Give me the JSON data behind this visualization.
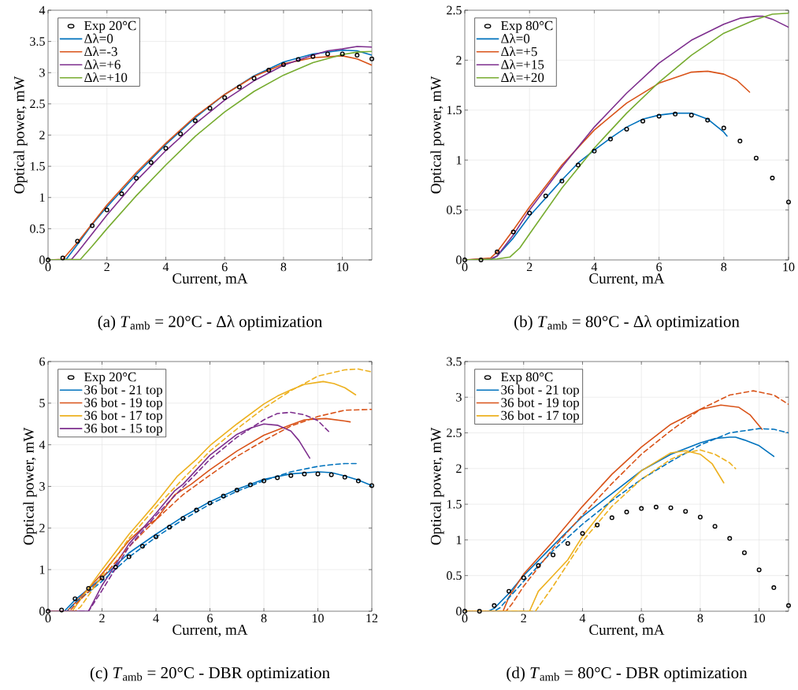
{
  "chart_data": [
    {
      "type": "line",
      "xlabel": "Current, mA",
      "ylabel": "Optical power, mW",
      "annotations": [
        "(a) *T*$_{amb}$ = 20°C - Δλ optimization"
      ],
      "xlim": [
        0,
        11
      ],
      "ylim": [
        0,
        4
      ],
      "xticks": [
        0,
        2,
        4,
        6,
        8,
        10
      ],
      "yticks": [
        0,
        0.5,
        1,
        1.5,
        2,
        2.5,
        3,
        3.5,
        4
      ],
      "grid": true,
      "legend": "top left",
      "series": [
        {
          "name": "Exp 20°C",
          "type": "scatter",
          "marker": "circle",
          "color": "#000000",
          "x": [
            0,
            0.5,
            1,
            1.5,
            2,
            2.5,
            3,
            3.5,
            4,
            4.5,
            5,
            5.5,
            6,
            6.5,
            7,
            7.5,
            8,
            8.5,
            9,
            9.5,
            10,
            10.5,
            11
          ],
          "values": [
            0,
            0.03,
            0.3,
            0.55,
            0.8,
            1.06,
            1.31,
            1.56,
            1.79,
            2.02,
            2.23,
            2.43,
            2.6,
            2.77,
            2.91,
            3.04,
            3.13,
            3.21,
            3.26,
            3.3,
            3.3,
            3.28,
            3.22
          ]
        },
        {
          "name": "Δλ=0",
          "color": "#0072bd",
          "x": [
            0,
            0.6,
            1,
            1.5,
            2,
            3,
            4,
            5,
            6,
            7,
            8,
            9,
            10,
            10.5,
            11
          ],
          "values": [
            0,
            0,
            0.25,
            0.57,
            0.85,
            1.37,
            1.85,
            2.28,
            2.65,
            2.95,
            3.17,
            3.3,
            3.36,
            3.35,
            3.28
          ]
        },
        {
          "name": "Δλ=-3",
          "color": "#d95319",
          "x": [
            0,
            0.5,
            1,
            2,
            3,
            4,
            5,
            6,
            7,
            8,
            9,
            10,
            10.5,
            11
          ],
          "values": [
            0,
            0.01,
            0.28,
            0.88,
            1.4,
            1.87,
            2.3,
            2.65,
            2.94,
            3.14,
            3.24,
            3.27,
            3.22,
            3.12
          ]
        },
        {
          "name": "Δλ=+6",
          "color": "#7e2f8e",
          "x": [
            0,
            0.8,
            1,
            2,
            3,
            4,
            5,
            6,
            7,
            8,
            9,
            9.5,
            10,
            10.5,
            11
          ],
          "values": [
            0,
            0.01,
            0.12,
            0.72,
            1.27,
            1.75,
            2.18,
            2.56,
            2.87,
            3.12,
            3.28,
            3.35,
            3.38,
            3.42,
            3.41
          ]
        },
        {
          "name": "Δλ=+10",
          "color": "#77ac30",
          "x": [
            0,
            1.1,
            1.5,
            2,
            3,
            4,
            5,
            6,
            7,
            8,
            9,
            10,
            10.5,
            11
          ],
          "values": [
            0,
            0.01,
            0.22,
            0.5,
            1.03,
            1.52,
            1.98,
            2.37,
            2.7,
            2.96,
            3.16,
            3.29,
            3.33,
            3.34
          ]
        }
      ]
    },
    {
      "type": "line",
      "xlabel": "Current, mA",
      "ylabel": "Optical power, mW",
      "annotations": [
        "(b) *T*$_{amb}$ = 80°C - Δλ optimization"
      ],
      "xlim": [
        0,
        10
      ],
      "ylim": [
        0,
        2.5
      ],
      "xticks": [
        0,
        2,
        4,
        6,
        8,
        10
      ],
      "yticks": [
        0,
        0.5,
        1,
        1.5,
        2,
        2.5
      ],
      "grid": true,
      "legend": "top left",
      "series": [
        {
          "name": "Exp 80°C",
          "type": "scatter",
          "marker": "circle",
          "color": "#000000",
          "x": [
            0,
            0.5,
            1,
            1.5,
            2,
            2.5,
            3,
            3.5,
            4,
            4.5,
            5,
            5.5,
            6,
            6.5,
            7,
            7.5,
            8,
            8.5,
            9,
            9.5,
            10
          ],
          "values": [
            0,
            0,
            0.08,
            0.28,
            0.47,
            0.64,
            0.79,
            0.95,
            1.09,
            1.21,
            1.31,
            1.39,
            1.44,
            1.46,
            1.45,
            1.4,
            1.32,
            1.19,
            1.02,
            0.82,
            0.58
          ]
        },
        {
          "name": "Δλ=0",
          "color": "#0072bd",
          "x": [
            0,
            0.8,
            1,
            1.5,
            2,
            2.5,
            3,
            3.5,
            4,
            4.5,
            5,
            5.5,
            6,
            6.5,
            7,
            7.5,
            8,
            8.1
          ],
          "values": [
            0,
            0,
            0.04,
            0.22,
            0.44,
            0.62,
            0.8,
            0.97,
            1.1,
            1.22,
            1.33,
            1.41,
            1.45,
            1.47,
            1.47,
            1.41,
            1.28,
            1.24
          ]
        },
        {
          "name": "Δλ=+5",
          "color": "#d95319",
          "x": [
            0,
            0.8,
            1,
            1.5,
            2,
            3,
            4,
            5,
            6,
            7,
            7.5,
            8,
            8.4,
            8.8
          ],
          "values": [
            0,
            0.02,
            0.08,
            0.3,
            0.53,
            0.95,
            1.3,
            1.57,
            1.77,
            1.88,
            1.89,
            1.86,
            1.8,
            1.68
          ]
        },
        {
          "name": "Δλ=+15",
          "color": "#7e2f8e",
          "x": [
            0,
            0.8,
            1,
            1.5,
            2,
            3,
            4,
            5,
            6,
            7,
            8,
            8.5,
            9,
            9.2,
            9.5,
            10
          ],
          "values": [
            0,
            0.01,
            0.04,
            0.25,
            0.5,
            0.93,
            1.33,
            1.67,
            1.97,
            2.2,
            2.36,
            2.42,
            2.44,
            2.44,
            2.41,
            2.33
          ]
        },
        {
          "name": "Δλ=+20",
          "color": "#77ac30",
          "x": [
            0,
            1,
            1.4,
            1.7,
            2,
            3,
            4,
            5,
            6,
            7,
            8,
            9,
            9.5,
            10
          ],
          "values": [
            0,
            0.01,
            0.03,
            0.12,
            0.26,
            0.72,
            1.12,
            1.47,
            1.78,
            2.05,
            2.27,
            2.41,
            2.46,
            2.47
          ]
        }
      ]
    },
    {
      "type": "line",
      "xlabel": "Current, mA",
      "ylabel": "Optical power, mW",
      "annotations": [
        "(c) *T*$_{amb}$ = 20°C - DBR optimization"
      ],
      "xlim": [
        0,
        12
      ],
      "ylim": [
        0,
        6
      ],
      "xticks": [
        0,
        2,
        4,
        6,
        8,
        10,
        12
      ],
      "yticks": [
        0,
        1,
        2,
        3,
        4,
        5,
        6
      ],
      "grid": true,
      "legend": "top left",
      "series": [
        {
          "name": "Exp 20°C",
          "type": "scatter",
          "marker": "circle",
          "color": "#000000",
          "x": [
            0,
            0.5,
            1,
            1.5,
            2,
            2.5,
            3,
            3.5,
            4,
            4.5,
            5,
            5.5,
            6,
            6.5,
            7,
            7.5,
            8,
            8.5,
            9,
            9.5,
            10,
            10.5,
            11,
            11.5,
            12
          ],
          "values": [
            0,
            0.03,
            0.3,
            0.55,
            0.8,
            1.06,
            1.31,
            1.56,
            1.79,
            2.02,
            2.23,
            2.43,
            2.6,
            2.77,
            2.91,
            3.04,
            3.13,
            3.21,
            3.26,
            3.3,
            3.3,
            3.28,
            3.22,
            3.13,
            3.02
          ]
        },
        {
          "name": "36 bot - 21 top",
          "color": "#0072bd",
          "x": [
            0,
            0.6,
            1,
            2,
            3,
            4,
            5,
            6,
            7,
            8,
            9,
            10,
            10.5,
            11,
            11.5,
            12
          ],
          "values": [
            0,
            0,
            0.27,
            0.8,
            1.4,
            1.85,
            2.27,
            2.63,
            2.93,
            3.17,
            3.3,
            3.35,
            3.33,
            3.25,
            3.15,
            3.02
          ]
        },
        {
          "name": "36 bot - 19 top",
          "color": "#d95319",
          "x": [
            0,
            0.7,
            1,
            2,
            3,
            3.5,
            4,
            4.7,
            5.3,
            6,
            7,
            8,
            9,
            9.5,
            10,
            10.3,
            11,
            11.2
          ],
          "values": [
            0,
            0,
            0.2,
            0.9,
            1.7,
            2.0,
            2.2,
            2.8,
            3.05,
            3.4,
            3.85,
            4.23,
            4.48,
            4.6,
            4.62,
            4.63,
            4.57,
            4.55
          ]
        },
        {
          "name": "36 bot - 17 top",
          "color": "#edb120",
          "x": [
            0,
            0.9,
            1,
            2,
            3,
            3.4,
            4,
            4.8,
            5.5,
            6,
            7,
            8,
            8.5,
            9,
            9.5,
            10,
            10.2,
            10.6,
            11,
            11.4
          ],
          "values": [
            0,
            0,
            0.1,
            1.0,
            1.85,
            2.15,
            2.6,
            3.25,
            3.65,
            3.98,
            4.5,
            4.98,
            5.17,
            5.32,
            5.45,
            5.5,
            5.52,
            5.47,
            5.37,
            5.2
          ]
        },
        {
          "name": "36 bot - 15 top",
          "color": "#7e2f8e",
          "x": [
            0,
            1.5,
            2,
            3,
            4,
            4.7,
            5,
            6,
            7,
            7.5,
            8,
            8.5,
            9,
            9.3,
            9.7
          ],
          "values": [
            0,
            0,
            0.62,
            1.62,
            2.35,
            2.9,
            3.05,
            3.75,
            4.25,
            4.4,
            4.5,
            4.47,
            4.33,
            4.1,
            3.68
          ]
        },
        {
          "color": "#0072bd",
          "line_style": "dashed",
          "x": [
            0,
            0.7,
            1,
            2,
            3,
            4,
            5,
            6,
            7,
            8,
            9,
            10,
            10.5,
            11,
            11.5
          ],
          "values": [
            0,
            0,
            0.2,
            0.72,
            1.3,
            1.78,
            2.2,
            2.57,
            2.88,
            3.14,
            3.35,
            3.48,
            3.52,
            3.55,
            3.55
          ]
        },
        {
          "color": "#d95319",
          "line_style": "dashed",
          "x": [
            0,
            0.8,
            1,
            2,
            3,
            4,
            5,
            6,
            7,
            8,
            9,
            10,
            11,
            12
          ],
          "values": [
            0,
            0,
            0.15,
            0.8,
            1.55,
            2.2,
            2.8,
            3.27,
            3.72,
            4.1,
            4.45,
            4.68,
            4.83,
            4.85
          ]
        },
        {
          "color": "#edb120",
          "line_style": "dashed",
          "x": [
            0,
            1,
            1.2,
            2,
            3,
            4,
            5,
            6,
            7,
            8,
            9,
            9.5,
            10,
            11,
            11.5,
            12
          ],
          "values": [
            0,
            0,
            0.1,
            0.85,
            1.75,
            2.5,
            3.18,
            3.85,
            4.38,
            4.88,
            5.3,
            5.47,
            5.65,
            5.8,
            5.82,
            5.75
          ]
        },
        {
          "color": "#7e2f8e",
          "line_style": "dashed",
          "x": [
            0,
            1.5,
            2,
            3,
            4,
            5,
            6,
            7,
            8,
            8.5,
            9,
            9.5,
            10,
            10.4
          ],
          "values": [
            0,
            0,
            0.5,
            1.55,
            2.3,
            2.98,
            3.65,
            4.18,
            4.6,
            4.75,
            4.78,
            4.72,
            4.58,
            4.32
          ]
        }
      ]
    },
    {
      "type": "line",
      "xlabel": "Current, mA",
      "ylabel": "Optical power, mW",
      "annotations": [
        "(d) *T*$_{amb}$ = 80°C - DBR optimization"
      ],
      "xlim": [
        0,
        11
      ],
      "ylim": [
        0,
        3.5
      ],
      "xticks": [
        0,
        2,
        4,
        6,
        8,
        10
      ],
      "yticks": [
        0,
        0.5,
        1,
        1.5,
        2,
        2.5,
        3,
        3.5
      ],
      "grid": true,
      "legend": "top left",
      "series": [
        {
          "name": "Exp 80°C",
          "type": "scatter",
          "marker": "circle",
          "color": "#000000",
          "x": [
            0,
            0.5,
            1,
            1.5,
            2,
            2.5,
            3,
            3.5,
            4,
            4.5,
            5,
            5.5,
            6,
            6.5,
            7,
            7.5,
            8,
            8.5,
            9,
            9.5,
            10,
            10.5,
            11
          ],
          "values": [
            0,
            0,
            0.08,
            0.28,
            0.47,
            0.64,
            0.79,
            0.95,
            1.09,
            1.21,
            1.31,
            1.39,
            1.44,
            1.46,
            1.45,
            1.4,
            1.32,
            1.19,
            1.02,
            0.82,
            0.58,
            0.33,
            0.08
          ]
        },
        {
          "name": "36 bot - 21 top",
          "color": "#0072bd",
          "x": [
            0,
            0.8,
            1,
            1.5,
            2,
            3,
            4,
            5,
            6,
            7,
            8,
            8.5,
            9,
            9.2,
            9.5,
            10,
            10.5
          ],
          "values": [
            0,
            0,
            0.04,
            0.25,
            0.5,
            0.92,
            1.33,
            1.65,
            1.97,
            2.2,
            2.36,
            2.42,
            2.44,
            2.44,
            2.4,
            2.32,
            2.17
          ]
        },
        {
          "name": "36 bot - 19 top",
          "color": "#d95319",
          "x": [
            0,
            1.3,
            1.5,
            2,
            3,
            4,
            5,
            6,
            7,
            8,
            8.7,
            9.3,
            9.7,
            10.1
          ],
          "values": [
            0,
            0,
            0.2,
            0.52,
            0.98,
            1.47,
            1.92,
            2.3,
            2.62,
            2.83,
            2.89,
            2.86,
            2.75,
            2.55
          ]
        },
        {
          "name": "36 bot - 17 top",
          "color": "#edb120",
          "x": [
            0,
            2.2,
            2.5,
            3,
            3.5,
            4,
            5,
            6,
            7,
            7.5,
            8,
            8.4,
            8.8
          ],
          "values": [
            0,
            0,
            0.28,
            0.5,
            0.72,
            1.05,
            1.57,
            1.97,
            2.22,
            2.25,
            2.2,
            2.07,
            1.8
          ]
        },
        {
          "color": "#0072bd",
          "line_style": "dashed",
          "x": [
            0,
            1,
            1.2,
            2,
            3,
            4,
            5,
            6,
            7,
            8,
            9,
            10,
            10.5,
            11
          ],
          "values": [
            0,
            0,
            0.05,
            0.42,
            0.85,
            1.22,
            1.55,
            1.85,
            2.1,
            2.33,
            2.5,
            2.56,
            2.55,
            2.5
          ]
        },
        {
          "color": "#d95319",
          "line_style": "dashed",
          "x": [
            0,
            1.4,
            1.6,
            2,
            3,
            4,
            5,
            6,
            7,
            8,
            9,
            9.8,
            10.5,
            11
          ],
          "values": [
            0,
            0,
            0.1,
            0.35,
            0.88,
            1.35,
            1.79,
            2.2,
            2.53,
            2.83,
            3.03,
            3.09,
            3.03,
            2.9
          ]
        },
        {
          "color": "#edb120",
          "line_style": "dashed",
          "x": [
            0,
            2.4,
            3,
            4,
            5,
            6,
            7,
            7.5,
            8,
            8.5,
            9,
            9.2
          ],
          "values": [
            0,
            0,
            0.35,
            0.98,
            1.47,
            1.85,
            2.13,
            2.22,
            2.26,
            2.2,
            2.08,
            2.0
          ]
        }
      ]
    }
  ]
}
